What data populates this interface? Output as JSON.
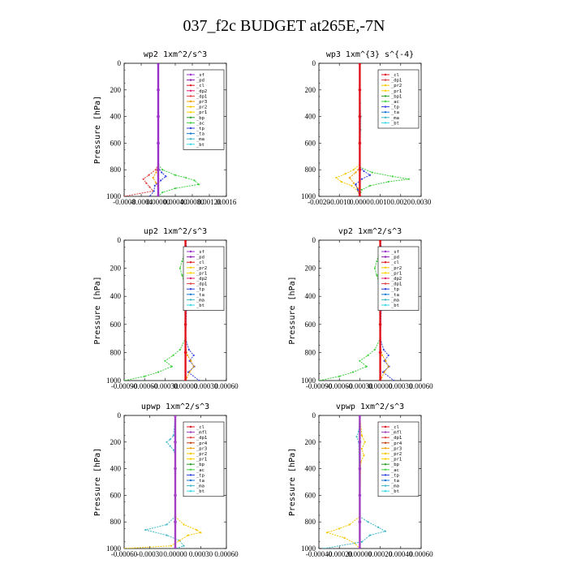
{
  "figure": {
    "title": "037_f2c  BUDGET at265E,-7N"
  },
  "colors": {
    "sf": "#9b30c8",
    "pd": "#8b1cb0",
    "cl": "#e0141e",
    "dp2": "#e01e6e",
    "dp1": "#e04040",
    "pr4": "#c04010",
    "pr3": "#f0a000",
    "pr2": "#f5c800",
    "pr1": "#ffd000",
    "bp": "#2ea02e",
    "ac": "#40d040",
    "tp": "#3040e0",
    "ta": "#1878d8",
    "ma": "#40b8c8",
    "bt": "#38d8e8",
    "mfl": "#a040c0"
  },
  "chart_data": [
    {
      "type": "line",
      "title": "wp2   1xm^2/s^3",
      "ylabel": "Pressure  [hPa]",
      "xlim": [
        -0.0008,
        0.0016
      ],
      "xticks": [
        "-0.0008",
        "-0.0004",
        "0.00000",
        "0.00040",
        "0.00080",
        "0.00120",
        "0.0016"
      ],
      "xtick_values": [
        -0.0008,
        -0.0004,
        0,
        0.0004,
        0.0008,
        0.0012,
        0.0016
      ],
      "ylim": [
        1000,
        0
      ],
      "yticks": [
        "0",
        "200",
        "400",
        "600",
        "800",
        "1000"
      ],
      "legend": [
        "_sf",
        "_pd",
        "_cl",
        "_dp2",
        "_dp1",
        "_pr3",
        "_pr2",
        "_pr1",
        "_bp",
        "_ac",
        "_tp",
        "_ta",
        "_ma",
        "_bt"
      ],
      "series": [
        {
          "name": "_dp1",
          "color_key": "dp1",
          "p": [
            0,
            760,
            800,
            840,
            870,
            900,
            930,
            960,
            1000
          ],
          "v": [
            0,
            0,
            -6e-05,
            -0.00022,
            -0.00035,
            -0.00028,
            -0.0002,
            -0.00012,
            -0.0008
          ]
        },
        {
          "name": "_pr3",
          "color_key": "pr3",
          "p": [
            0,
            780,
            820,
            860,
            900,
            940,
            1000
          ],
          "v": [
            0,
            0,
            -5e-05,
            -0.00012,
            -5e-05,
            0,
            0
          ]
        },
        {
          "name": "_ac",
          "color_key": "ac",
          "p": [
            0,
            760,
            800,
            840,
            860,
            880,
            910,
            940,
            970,
            1000
          ],
          "v": [
            0,
            0,
            0.0001,
            0.0004,
            0.00065,
            0.00085,
            0.00095,
            0.0004,
            0.0001,
            0
          ]
        },
        {
          "name": "_tp",
          "color_key": "tp",
          "p": [
            0,
            780,
            820,
            850,
            880,
            920,
            960,
            1000
          ],
          "v": [
            0,
            0,
            8e-05,
            0.00018,
            6e-05,
            -8e-05,
            -0.0001,
            -0.0002
          ]
        },
        {
          "name": "_sf",
          "color_key": "sf",
          "p": [
            0,
            200,
            400,
            600,
            800,
            1000
          ],
          "v": [
            0,
            0,
            0,
            0,
            0,
            0
          ]
        }
      ]
    },
    {
      "type": "line",
      "title": "wp3   1xm^{3} s^{-4}",
      "ylabel": "",
      "xlim": [
        -0.002,
        0.003
      ],
      "xticks": [
        "-0.0020",
        "-0.0010",
        "0.0000",
        "0.0010",
        "0.0020",
        "0.0030"
      ],
      "xtick_values": [
        -0.002,
        -0.001,
        0,
        0.001,
        0.002,
        0.003
      ],
      "ylim": [
        1000,
        0
      ],
      "yticks": [
        "0",
        "200",
        "400",
        "600",
        "800",
        "1000"
      ],
      "legend": [
        "_cl",
        "_dp1",
        "_pr2",
        "_pr1",
        "_bp1",
        "_ac",
        "_tp",
        "_ta",
        "_ma",
        "_bt"
      ],
      "series": [
        {
          "name": "_pr1",
          "color_key": "pr2",
          "p": [
            0,
            760,
            800,
            830,
            860,
            890,
            920,
            960,
            1000
          ],
          "v": [
            0,
            0,
            -0.0003,
            -0.0007,
            -0.00115,
            -0.0009,
            -0.0004,
            -0.0001,
            0
          ]
        },
        {
          "name": "_pr2",
          "color_key": "pr3",
          "p": [
            0,
            780,
            820,
            860,
            900,
            940,
            1000
          ],
          "v": [
            0,
            0,
            -0.0002,
            -0.0005,
            -0.0003,
            -0.0001,
            0
          ]
        },
        {
          "name": "_ac",
          "color_key": "ac",
          "p": [
            0,
            780,
            820,
            850,
            870,
            890,
            920,
            950,
            1000
          ],
          "v": [
            0,
            0,
            0.0006,
            0.0016,
            0.0024,
            0.0014,
            0.0005,
            0.0001,
            0
          ]
        },
        {
          "name": "_tp",
          "color_key": "tp",
          "p": [
            0,
            780,
            810,
            840,
            870,
            910,
            950,
            1000
          ],
          "v": [
            0,
            0,
            0.0002,
            0.0005,
            0.0001,
            -0.0002,
            -0.0001,
            0
          ]
        },
        {
          "name": "_ma",
          "color_key": "ma",
          "p": [
            0,
            300,
            400,
            500,
            600,
            1000
          ],
          "v": [
            0,
            2e-05,
            5e-05,
            4e-05,
            2e-05,
            0
          ]
        },
        {
          "name": "_cl",
          "color_key": "cl",
          "p": [
            0,
            200,
            400,
            600,
            800,
            1000
          ],
          "v": [
            0,
            0,
            0,
            0,
            0,
            0
          ]
        }
      ]
    },
    {
      "type": "line",
      "title": "up2   1xm^2/s^3",
      "ylabel": "Pressure  [hPa]",
      "xlim": [
        -0.0009,
        0.0006
      ],
      "xticks": [
        "-0.00090",
        "-0.00060",
        "-0.00030",
        "0.00000",
        "0.00030",
        "0.00060"
      ],
      "xtick_values": [
        -0.0009,
        -0.0006,
        -0.0003,
        0,
        0.0003,
        0.0006
      ],
      "ylim": [
        1000,
        0
      ],
      "yticks": [
        "0",
        "200",
        "400",
        "600",
        "800",
        "1000"
      ],
      "legend": [
        "_sf",
        "_pd",
        "_cl",
        "_pr2",
        "_pr1",
        "_dp2",
        "_dp1",
        "_tp",
        "_ta",
        "_ma",
        "_bt"
      ],
      "series": [
        {
          "name": "_dp1",
          "color_key": "ac",
          "p": [
            0,
            100,
            150,
            200,
            250,
            300,
            700,
            780,
            820,
            860,
            900,
            940,
            970,
            1000
          ],
          "v": [
            0,
            -2e-05,
            -5e-05,
            -8e-05,
            -5e-05,
            -2e-05,
            0,
            -8e-05,
            -0.00018,
            -0.0003,
            -0.0002,
            -0.0004,
            -0.0006,
            -0.0009
          ]
        },
        {
          "name": "_tp",
          "color_key": "tp",
          "p": [
            0,
            100,
            150,
            200,
            250,
            300,
            700,
            780,
            820,
            860,
            900,
            940,
            1000
          ],
          "v": [
            0,
            3e-05,
            8e-05,
            0.00012,
            8e-05,
            3e-05,
            0,
            5e-05,
            0.00012,
            6e-05,
            0.00013,
            4e-05,
            0.0002
          ]
        },
        {
          "name": "_pr1",
          "color_key": "pr3",
          "p": [
            0,
            760,
            820,
            860,
            900,
            940,
            980,
            1000
          ],
          "v": [
            0,
            0,
            3e-05,
            8e-05,
            0.00012,
            6e-05,
            2e-05,
            0
          ]
        },
        {
          "name": "_pd",
          "color_key": "cl",
          "p": [
            0,
            200,
            400,
            600,
            800,
            1000
          ],
          "v": [
            0,
            0,
            0,
            0,
            0,
            0
          ]
        }
      ]
    },
    {
      "type": "line",
      "title": "vp2   1xm^2/s^3",
      "ylabel": "Pressure  [hPa]",
      "xlim": [
        -0.0009,
        0.0006
      ],
      "xticks": [
        "-0.00090",
        "-0.00060",
        "-0.00030",
        "0.00000",
        "0.00030",
        "0.00060"
      ],
      "xtick_values": [
        -0.0009,
        -0.0006,
        -0.0003,
        0,
        0.0003,
        0.0006
      ],
      "ylim": [
        1000,
        0
      ],
      "yticks": [
        "0",
        "200",
        "400",
        "600",
        "800",
        "1000"
      ],
      "legend": [
        "_sf",
        "_pd",
        "_cl",
        "_pr2",
        "_pr1",
        "_dp2",
        "_dp1",
        "_tp",
        "_ta",
        "_ma",
        "_bt"
      ],
      "series": [
        {
          "name": "_dp1",
          "color_key": "ac",
          "p": [
            0,
            100,
            150,
            200,
            250,
            300,
            700,
            780,
            820,
            860,
            900,
            940,
            970,
            1000
          ],
          "v": [
            0,
            -2e-05,
            -5e-05,
            -8e-05,
            -5e-05,
            -2e-05,
            0,
            -8e-05,
            -0.00018,
            -0.0003,
            -0.0002,
            -0.0004,
            -0.0006,
            -0.0009
          ]
        },
        {
          "name": "_tp",
          "color_key": "tp",
          "p": [
            0,
            100,
            150,
            200,
            250,
            300,
            700,
            780,
            820,
            860,
            900,
            940,
            1000
          ],
          "v": [
            0,
            3e-05,
            8e-05,
            0.00012,
            8e-05,
            3e-05,
            0,
            5e-05,
            0.00012,
            6e-05,
            0.00013,
            4e-05,
            0.0002
          ]
        },
        {
          "name": "_pr1",
          "color_key": "pr3",
          "p": [
            0,
            760,
            820,
            860,
            900,
            940,
            980,
            1000
          ],
          "v": [
            0,
            0,
            3e-05,
            8e-05,
            0.00012,
            6e-05,
            2e-05,
            0
          ]
        },
        {
          "name": "_pd",
          "color_key": "cl",
          "p": [
            0,
            200,
            400,
            600,
            800,
            1000
          ],
          "v": [
            0,
            0,
            0,
            0,
            0,
            0
          ]
        }
      ]
    },
    {
      "type": "line",
      "title": "upwp   1xm^2/s^3",
      "ylabel": "Pressure  [hPa]",
      "xlim": [
        -0.0006,
        0.0006
      ],
      "xticks": [
        "-0.00060",
        "-0.00030",
        "0.00000",
        "0.00030",
        "0.00060"
      ],
      "xtick_values": [
        -0.0006,
        -0.0003,
        0,
        0.0003,
        0.0006
      ],
      "ylim": [
        1000,
        0
      ],
      "yticks": [
        "0",
        "200",
        "400",
        "600",
        "800",
        "1000"
      ],
      "legend": [
        "_cl",
        "_mfl",
        "_dp1",
        "_pr4",
        "_pr3",
        "_pr2",
        "_pr1",
        "_bp",
        "_ac",
        "_tp",
        "_ta",
        "_ma",
        "_bt"
      ],
      "series": [
        {
          "name": "_ta",
          "color_key": "ma",
          "p": [
            0,
            150,
            180,
            200,
            230,
            260,
            300,
            760,
            820,
            860,
            900,
            940,
            980,
            1000
          ],
          "v": [
            0,
            -2e-05,
            -6e-05,
            -0.0001,
            -6e-05,
            -2e-05,
            0,
            0,
            -0.0001,
            -0.00035,
            -0.0001,
            5e-05,
            0.0001,
            0
          ]
        },
        {
          "name": "_pr2",
          "color_key": "pr2",
          "p": [
            0,
            760,
            820,
            860,
            880,
            900,
            940,
            980,
            1000
          ],
          "v": [
            0,
            0,
            0.0001,
            0.00025,
            0.0003,
            0.00015,
            5e-05,
            -5e-05,
            -0.0006
          ]
        },
        {
          "name": "_mfl",
          "color_key": "mfl",
          "p": [
            0,
            200,
            400,
            600,
            800,
            1000
          ],
          "v": [
            0,
            0,
            0,
            0,
            0,
            0
          ]
        }
      ]
    },
    {
      "type": "line",
      "title": "vpwp   1xm^2/s^3",
      "ylabel": "Pressure  [hPa]",
      "xlim": [
        -0.0004,
        0.0006
      ],
      "xticks": [
        "-0.00040",
        "-0.00020",
        "0.00000",
        "0.00020",
        "0.00040",
        "0.00060"
      ],
      "xtick_values": [
        -0.0004,
        -0.0002,
        0,
        0.0002,
        0.0004,
        0.0006
      ],
      "ylim": [
        1000,
        0
      ],
      "yticks": [
        "0",
        "200",
        "400",
        "600",
        "800",
        "1000"
      ],
      "legend": [
        "_cl",
        "_mfl",
        "_dp1",
        "_pr4",
        "_pr3",
        "_pr2",
        "_pr1",
        "_bp",
        "_ac",
        "_tp",
        "_ta",
        "_ma",
        "_bt"
      ],
      "series": [
        {
          "name": "_pr2",
          "color_key": "pr2",
          "p": [
            0,
            150,
            200,
            250,
            300,
            350,
            760,
            820,
            850,
            880,
            920,
            960,
            1000
          ],
          "v": [
            0,
            2e-05,
            5e-05,
            2e-05,
            4e-05,
            1e-05,
            0,
            -0.0001,
            -0.0002,
            -0.00032,
            -0.00015,
            -5e-05,
            0
          ]
        },
        {
          "name": "_ta",
          "color_key": "ma",
          "p": [
            0,
            120,
            160,
            200,
            760,
            800,
            840,
            870,
            900,
            950,
            1000
          ],
          "v": [
            0,
            -1e-05,
            -3e-05,
            -1e-05,
            0,
            8e-05,
            0.00018,
            0.00025,
            0.0001,
            2e-05,
            -0.00035
          ]
        },
        {
          "name": "_mfl",
          "color_key": "mfl",
          "p": [
            0,
            200,
            400,
            600,
            800,
            1000
          ],
          "v": [
            0,
            0,
            0,
            0,
            0,
            0
          ]
        }
      ]
    }
  ]
}
